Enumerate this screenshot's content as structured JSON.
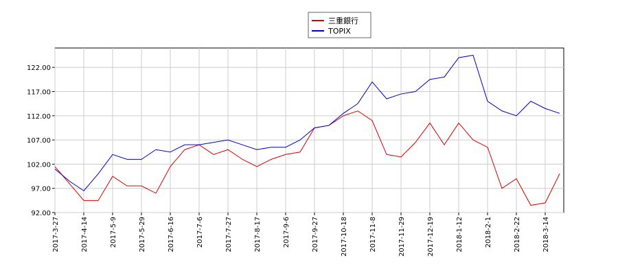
{
  "chart_data": {
    "type": "line",
    "x": [
      "2017-3-27",
      "2017-4-5",
      "2017-4-14",
      "2017-4-25",
      "2017-5-9",
      "2017-5-18",
      "2017-5-29",
      "2017-6-7",
      "2017-6-16",
      "2017-6-27",
      "2017-7-6",
      "2017-7-18",
      "2017-7-27",
      "2017-8-7",
      "2017-8-17",
      "2017-8-28",
      "2017-9-6",
      "2017-9-15",
      "2017-9-27",
      "2017-10-6",
      "2017-10-18",
      "2017-10-27",
      "2017-11-8",
      "2017-11-17",
      "2017-11-29",
      "2017-12-8",
      "2017-12-19",
      "2017-12-28",
      "2018-1-12",
      "2018-1-23",
      "2018-2-1",
      "2018-2-13",
      "2018-2-22",
      "2018-3-5",
      "2018-3-14",
      "2018-3-26"
    ],
    "series": [
      {
        "name": "三重銀行",
        "color": "#dd0000",
        "values": [
          101.5,
          98,
          94.5,
          94.5,
          99.5,
          97.5,
          97.5,
          96,
          101.5,
          105,
          106,
          104,
          105,
          103,
          101.5,
          103,
          104,
          104.5,
          109.5,
          110,
          112,
          113,
          111,
          104,
          103.5,
          106.5,
          110.5,
          106,
          110.5,
          107,
          105.5,
          97,
          99,
          93.5,
          94,
          100
        ]
      },
      {
        "name": "TOPIX",
        "color": "#0000cc",
        "values": [
          101,
          98.5,
          96.5,
          100,
          104,
          103,
          103,
          105,
          104.5,
          106,
          106,
          106.5,
          107,
          106,
          105,
          105.5,
          105.5,
          107,
          109.5,
          110,
          112.5,
          114.5,
          119,
          115.5,
          116.5,
          117,
          119.5,
          120,
          124,
          124.5,
          115,
          113,
          112,
          115,
          113.5,
          112.5
        ]
      }
    ],
    "xticks": [
      "2017-3-27",
      "2017-4-14",
      "2017-5-9",
      "2017-5-29",
      "2017-6-16",
      "2017-7-6",
      "2017-7-27",
      "2017-8-17",
      "2017-9-6",
      "2017-9-27",
      "2017-10-18",
      "2017-11-8",
      "2017-11-29",
      "2017-12-19",
      "2018-1-12",
      "2018-2-1",
      "2018-2-22",
      "2018-3-14"
    ],
    "ylim": [
      92,
      126
    ],
    "yticks": [
      {
        "value": 92,
        "label": "92.00"
      },
      {
        "value": 97,
        "label": "97.00"
      },
      {
        "value": 102,
        "label": "102.00"
      },
      {
        "value": 107,
        "label": "107.00"
      },
      {
        "value": 112,
        "label": "112.00"
      },
      {
        "value": 117,
        "label": "117.00"
      },
      {
        "value": 122,
        "label": "122.00"
      }
    ],
    "grid": true
  }
}
